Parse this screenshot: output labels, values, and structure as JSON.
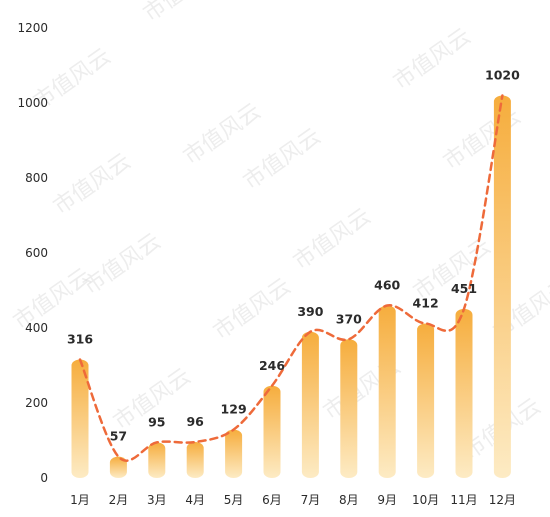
{
  "chart_data": {
    "type": "bar",
    "title": "",
    "xlabel": "",
    "ylabel": "",
    "categories": [
      "1月",
      "2月",
      "3月",
      "4月",
      "5月",
      "6月",
      "7月",
      "8月",
      "9月",
      "10月",
      "11月",
      "12月"
    ],
    "values": [
      316,
      57,
      95,
      96,
      129,
      246,
      390,
      370,
      460,
      412,
      451,
      1020
    ],
    "trend_line": {
      "style": "dashed",
      "smoothed": true,
      "color": "#ee6a3a"
    },
    "ylim": [
      0,
      1200
    ],
    "yticks": [
      0,
      200,
      400,
      600,
      800,
      1000,
      1200
    ],
    "grid": false,
    "legend": "none",
    "colors": {
      "bar_top": "#f6ad3d",
      "bar_bottom": "#fdebc4",
      "trend": "#ee6a3a",
      "text": "#2b2b2b"
    }
  },
  "watermark": "市值风云"
}
